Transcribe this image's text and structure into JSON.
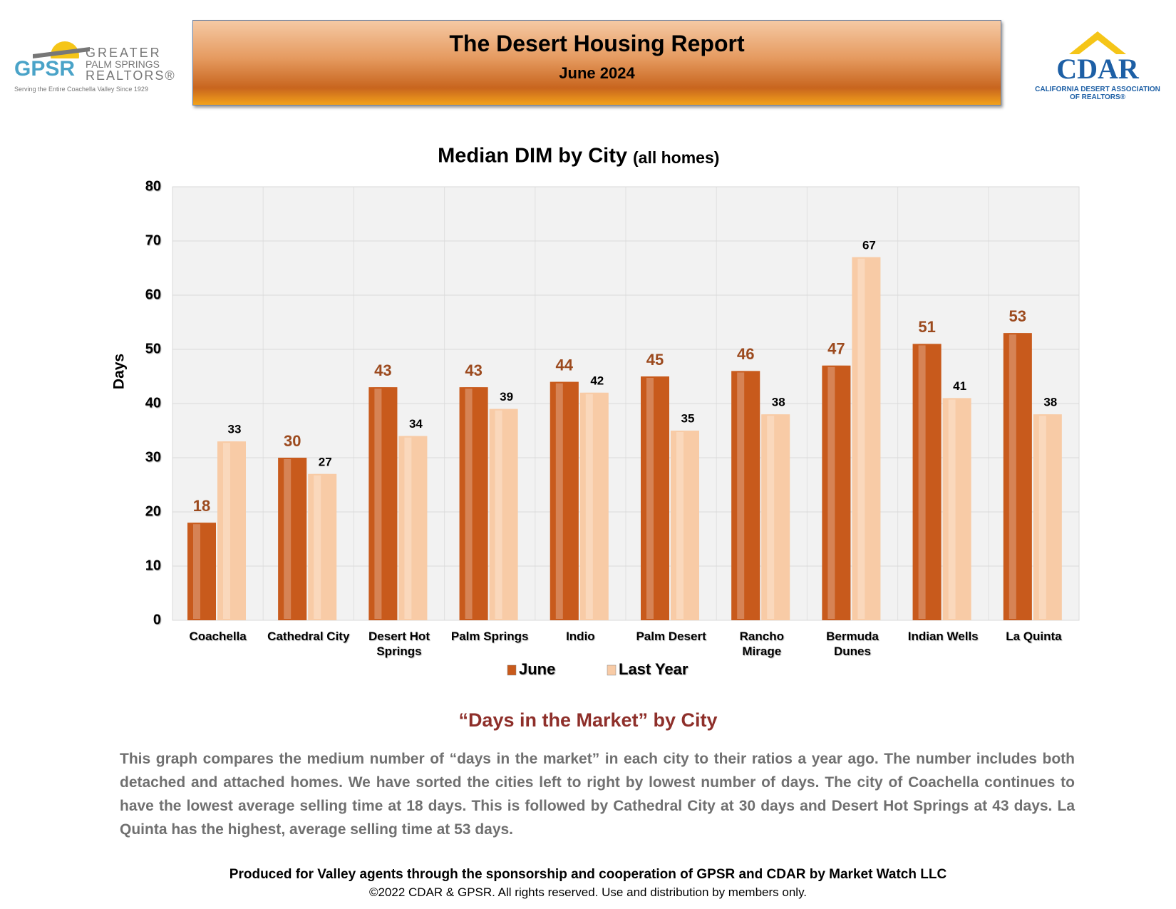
{
  "header": {
    "title": "The Desert Housing Report",
    "subtitle": "June 2024",
    "left_logo": {
      "mark": "GPSR",
      "line1": "GREATER",
      "line2": "PALM SPRINGS",
      "line3": "REALTORS®",
      "tagline": "Serving the Entire Coachella Valley Since 1929"
    },
    "right_logo": {
      "mark": "CDAR",
      "name": "CALIFORNIA DESERT ASSOCIATION OF REALTORS®"
    }
  },
  "chart_data": {
    "type": "bar",
    "title": "Median DIM by City",
    "title_note": "(all homes)",
    "y_label": "Days",
    "categories": [
      "Coachella",
      "Cathedral City",
      "Desert Hot Springs",
      "Palm Springs",
      "Indio",
      "Palm Desert",
      "Rancho Mirage",
      "Bermuda Dunes",
      "Indian Wells",
      "La Quinta"
    ],
    "series": [
      {
        "name": "June",
        "color": "#c85a1c",
        "values": [
          18,
          30,
          43,
          43,
          44,
          45,
          46,
          47,
          51,
          53
        ]
      },
      {
        "name": "Last Year",
        "color": "#f8cba6",
        "values": [
          33,
          27,
          34,
          39,
          42,
          35,
          38,
          67,
          41,
          38
        ]
      }
    ],
    "ylim": [
      0,
      80
    ],
    "yticks": [
      0,
      10,
      20,
      30,
      40,
      50,
      60,
      70,
      80
    ],
    "grid": true,
    "legend": "bottom"
  },
  "body": {
    "heading": "“Days in the Market” by City",
    "text": "This graph compares the medium number of “days in the market” in each city to their ratios a year ago. The number includes both detached and attached homes. We have sorted the cities left to right by lowest number of days. The city of Coachella continues to have the lowest average selling time at 18 days. This is followed by Cathedral City at 30 days and Desert Hot Springs at 43 days. La Quinta has the highest, average selling time at 53 days."
  },
  "footer": {
    "credit": "Produced for Valley agents through the sponsorship and cooperation of GPSR and CDAR by Market Watch LLC",
    "copyright": "©2022 CDAR & GPSR.  All rights reserved.  Use and distribution by members only."
  }
}
